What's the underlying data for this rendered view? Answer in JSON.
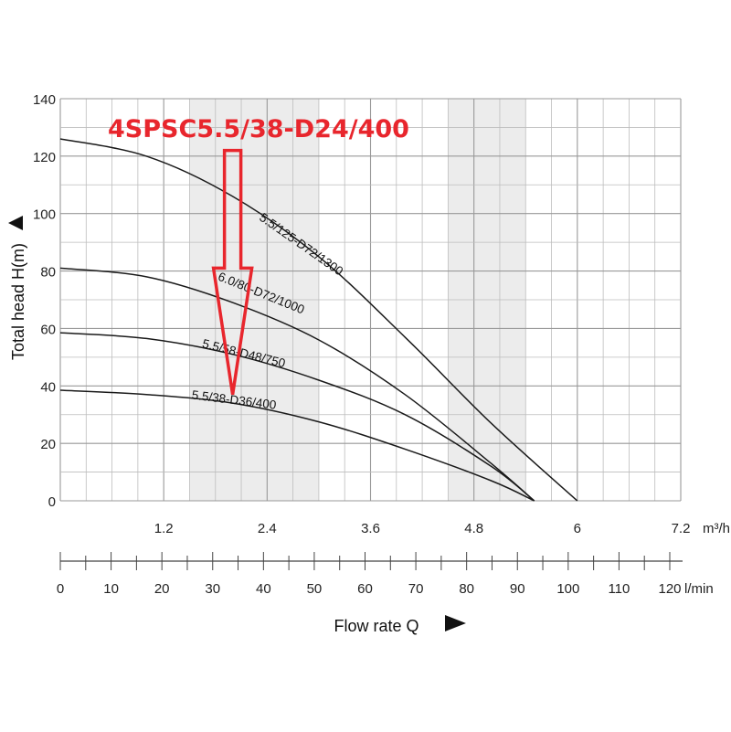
{
  "chart_data": {
    "type": "line",
    "title": "4SPSC5.5/38-D24/400",
    "ylabel": "Total head H(m)",
    "xlabel": "Flow rate Q",
    "ylim": [
      0,
      140
    ],
    "xlim_m3h": [
      0,
      7.2
    ],
    "yticks": [
      "0",
      "20",
      "40",
      "60",
      "80",
      "100",
      "120",
      "140"
    ],
    "xticks_m3h": [
      "1.2",
      "2.4",
      "3.6",
      "4.8",
      "6",
      "7.2"
    ],
    "x_unit_m3h": "m³/h",
    "xticks_lmin": [
      "0",
      "10",
      "20",
      "30",
      "40",
      "50",
      "60",
      "70",
      "80",
      "90",
      "100",
      "110",
      "120"
    ],
    "x_unit_lmin": "l/min",
    "shaded_bands_m3h": [
      [
        1.5,
        3.0
      ],
      [
        4.5,
        5.4
      ]
    ],
    "series": [
      {
        "name": "5.5/125-D72/1300",
        "x_m3h": [
          0,
          1,
          2,
          3,
          4,
          5,
          6
        ],
        "values": [
          126,
          120,
          106,
          85,
          57,
          27,
          0
        ]
      },
      {
        "name": "6.0/80-D72/1000",
        "x_m3h": [
          0,
          1,
          2,
          3,
          4,
          5,
          5.5
        ],
        "values": [
          81,
          78,
          69,
          56,
          37,
          13,
          0
        ]
      },
      {
        "name": "5.5/58-D48/750",
        "x_m3h": [
          0,
          1,
          2,
          3,
          4,
          5,
          5.5
        ],
        "values": [
          58.5,
          56.5,
          51,
          42,
          30,
          12,
          0
        ]
      },
      {
        "name": "5.5/38-D36/400",
        "x_m3h": [
          0,
          1,
          2,
          3,
          4,
          5,
          5.5
        ],
        "values": [
          38.5,
          37,
          34,
          27.5,
          18,
          7,
          0
        ]
      }
    ],
    "annotation": {
      "type": "arrow",
      "direction": "down",
      "x_m3h": 2.0,
      "from_y": 122,
      "to_y": 37,
      "color": "#e8262d"
    }
  }
}
